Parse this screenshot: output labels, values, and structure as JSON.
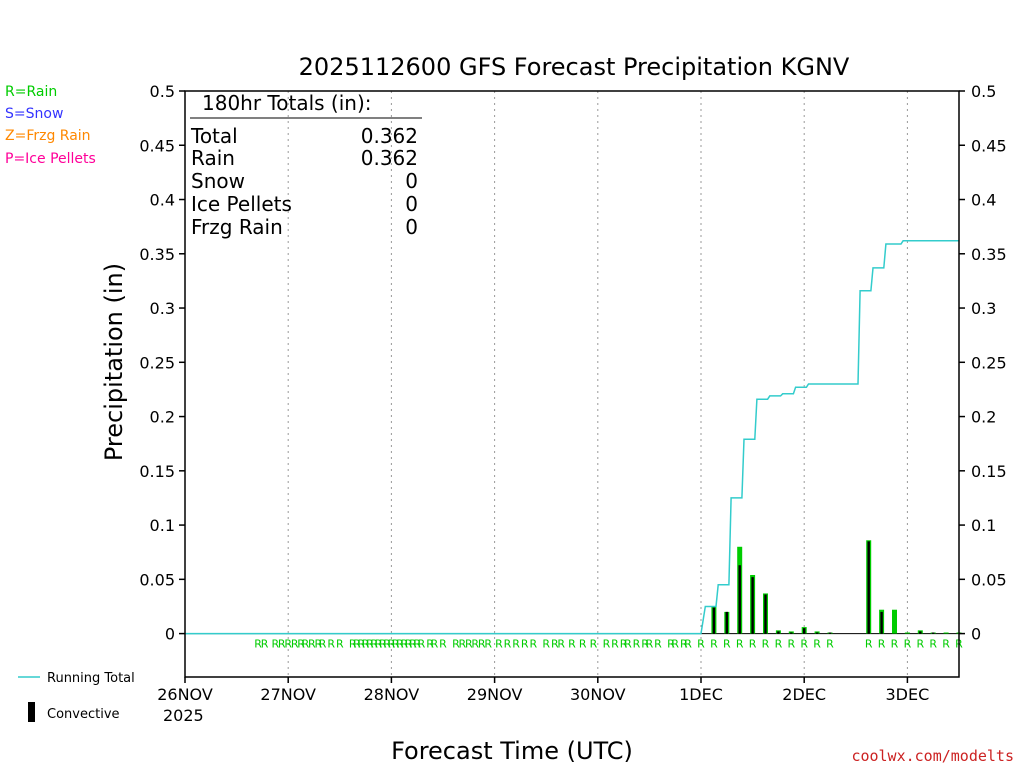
{
  "chart_data": {
    "type": "bar",
    "title": "2025112600 GFS Forecast Precipitation KGNV",
    "ylabel": "Precipitation (in)",
    "xlabel": "Forecast Time (UTC)",
    "ylim": [
      -0.04,
      0.5
    ],
    "yticks": [
      "0",
      "0.05",
      "0.1",
      "0.15",
      "0.2",
      "0.25",
      "0.3",
      "0.35",
      "0.4",
      "0.45",
      "0.5"
    ],
    "ytick_values": [
      0,
      0.05,
      0.1,
      0.15,
      0.2,
      0.25,
      0.3,
      0.35,
      0.4,
      0.45,
      0.5
    ],
    "xlim_hours": [
      0,
      180
    ],
    "xticks": [
      {
        "hour": 0,
        "label": "26NOV"
      },
      {
        "hour": 24,
        "label": "27NOV"
      },
      {
        "hour": 48,
        "label": "28NOV"
      },
      {
        "hour": 72,
        "label": "29NOV"
      },
      {
        "hour": 96,
        "label": "30NOV"
      },
      {
        "hour": 120,
        "label": "1DEC"
      },
      {
        "hour": 144,
        "label": "2DEC"
      },
      {
        "hour": 168,
        "label": "3DEC"
      }
    ],
    "year_label": "2025",
    "legend_types": [
      {
        "text": "R=Rain",
        "color": "#00cc00"
      },
      {
        "text": "S=Snow",
        "color": "#3333ff"
      },
      {
        "text": "Z=Frzg Rain",
        "color": "#ff8800"
      },
      {
        "text": "P=Ice Pellets",
        "color": "#ff0099"
      }
    ],
    "legend_series": {
      "running_total": "Running Total",
      "convective": "Convective"
    },
    "totals": {
      "header": "180hr Totals (in):",
      "rows": [
        {
          "label": "Total",
          "value": "0.362"
        },
        {
          "label": "Rain",
          "value": "0.362"
        },
        {
          "label": "Snow",
          "value": "0"
        },
        {
          "label": "Ice Pellets",
          "value": "0"
        },
        {
          "label": "Frzg Rain",
          "value": "0"
        }
      ]
    },
    "precip_bars": [
      {
        "hour": 123,
        "total": 0.025,
        "convective": 0.024
      },
      {
        "hour": 126,
        "total": 0.02,
        "convective": 0.02
      },
      {
        "hour": 129,
        "total": 0.08,
        "convective": 0.063
      },
      {
        "hour": 132,
        "total": 0.054,
        "convective": 0.052
      },
      {
        "hour": 135,
        "total": 0.037,
        "convective": 0.036
      },
      {
        "hour": 138,
        "total": 0.003,
        "convective": 0.002
      },
      {
        "hour": 141,
        "total": 0.002,
        "convective": 0.001
      },
      {
        "hour": 144,
        "total": 0.006,
        "convective": 0.005
      },
      {
        "hour": 147,
        "total": 0.002,
        "convective": 0.001
      },
      {
        "hour": 150,
        "total": 0.001,
        "convective": 0.001
      },
      {
        "hour": 159,
        "total": 0.086,
        "convective": 0.085
      },
      {
        "hour": 162,
        "total": 0.022,
        "convective": 0.02
      },
      {
        "hour": 165,
        "total": 0.022,
        "convective": 0
      },
      {
        "hour": 168,
        "total": 0.001,
        "convective": 0
      },
      {
        "hour": 171,
        "total": 0.003,
        "convective": 0.002
      },
      {
        "hour": 174,
        "total": 0.001,
        "convective": 0.001
      },
      {
        "hour": 177,
        "total": 0.001,
        "convective": 0
      },
      {
        "hour": 180,
        "total": 0.001,
        "convective": 0
      }
    ],
    "running_total": [
      {
        "hour": 0,
        "value": 0
      },
      {
        "hour": 120,
        "value": 0
      },
      {
        "hour": 121,
        "value": 0.025
      },
      {
        "hour": 123.5,
        "value": 0.025
      },
      {
        "hour": 124,
        "value": 0.045
      },
      {
        "hour": 126.5,
        "value": 0.045
      },
      {
        "hour": 127,
        "value": 0.125
      },
      {
        "hour": 129.5,
        "value": 0.125
      },
      {
        "hour": 130,
        "value": 0.179
      },
      {
        "hour": 132.5,
        "value": 0.179
      },
      {
        "hour": 133,
        "value": 0.216
      },
      {
        "hour": 135.5,
        "value": 0.216
      },
      {
        "hour": 136,
        "value": 0.219
      },
      {
        "hour": 138.5,
        "value": 0.219
      },
      {
        "hour": 139,
        "value": 0.221
      },
      {
        "hour": 141.5,
        "value": 0.221
      },
      {
        "hour": 142,
        "value": 0.227
      },
      {
        "hour": 144.5,
        "value": 0.227
      },
      {
        "hour": 145,
        "value": 0.23
      },
      {
        "hour": 156.5,
        "value": 0.23
      },
      {
        "hour": 157,
        "value": 0.316
      },
      {
        "hour": 159.5,
        "value": 0.316
      },
      {
        "hour": 160,
        "value": 0.337
      },
      {
        "hour": 162.5,
        "value": 0.337
      },
      {
        "hour": 163,
        "value": 0.359
      },
      {
        "hour": 166.5,
        "value": 0.359
      },
      {
        "hour": 167,
        "value": 0.362
      },
      {
        "hour": 180,
        "value": 0.362
      }
    ],
    "precip_type_markers": {
      "symbol": "R",
      "hours": [
        17,
        18.5,
        21,
        22.5,
        24,
        25.5,
        27,
        28,
        29.5,
        31,
        32,
        34,
        36,
        39,
        40,
        41,
        42,
        43,
        44,
        45,
        46,
        47,
        48,
        49,
        50,
        51,
        52,
        53,
        54,
        55,
        57,
        58,
        60,
        63,
        64.5,
        66,
        67.5,
        69,
        70.5,
        73,
        75,
        77,
        79,
        81,
        84,
        86,
        87.5,
        90,
        92.5,
        95,
        98,
        100,
        102,
        103,
        105,
        107,
        108,
        110,
        113,
        114,
        116,
        117,
        120,
        123,
        126,
        129,
        132,
        135,
        138,
        141,
        144,
        147,
        150,
        159,
        162,
        165,
        168,
        171,
        174,
        177,
        180
      ]
    }
  },
  "watermark": "coolwx.com/modelts",
  "colors": {
    "rain": "#00cc00",
    "convective": "#000000",
    "running_total": "#33cccc",
    "grid": "#999999"
  }
}
